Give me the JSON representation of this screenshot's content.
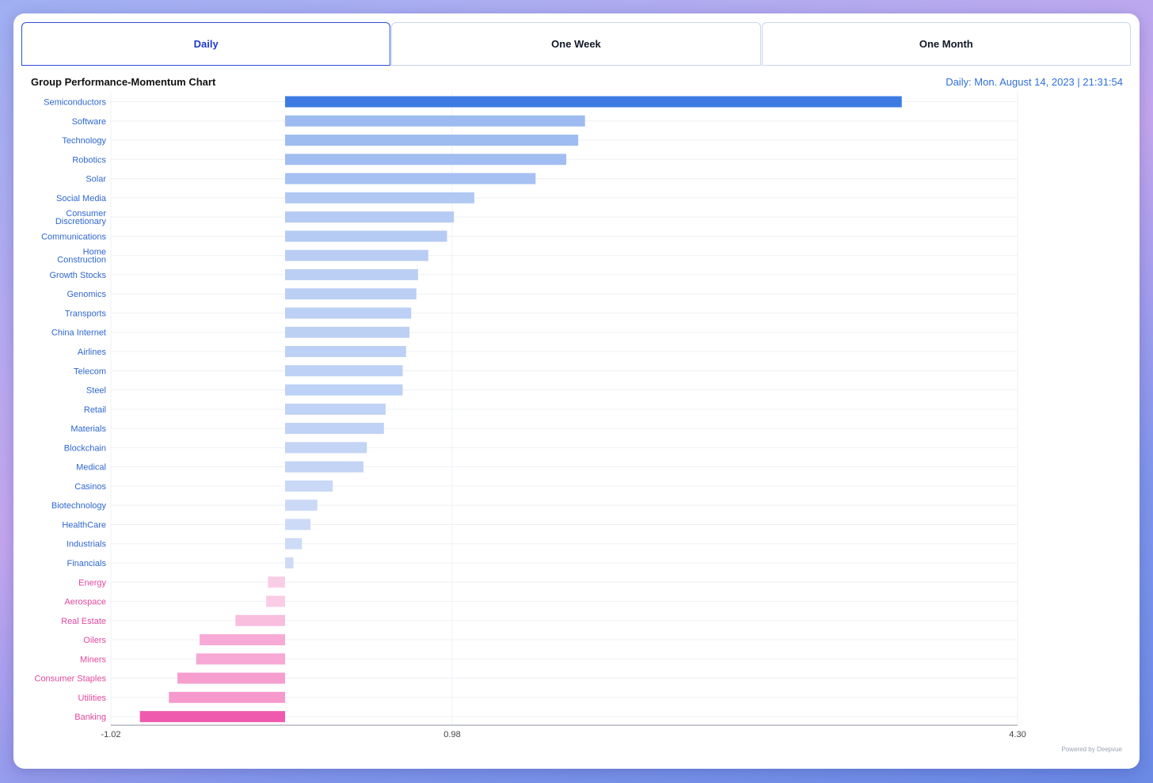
{
  "tabs": [
    {
      "label": "Daily",
      "active": true
    },
    {
      "label": "One Week",
      "active": false
    },
    {
      "label": "One Month",
      "active": false
    }
  ],
  "header": {
    "title": "Group Performance-Momentum Chart",
    "timestamp": "Daily: Mon. August 14, 2023 | 21:31:54"
  },
  "footer": {
    "powered_by": "Powered by Deepvue"
  },
  "colors": {
    "positive_strong": "#3d7be3",
    "positive_light": "#cfdcf7",
    "negative_strong": "#f05aae",
    "negative_light": "#fbd6ea",
    "positive_label": "#2f67d0",
    "negative_label": "#e2489e",
    "grid": "#eef0f4",
    "axis": "#8c93a3"
  },
  "chart_data": {
    "type": "bar",
    "orientation": "horizontal",
    "title": "Group Performance-Momentum Chart",
    "xlim": [
      -1.02,
      4.3
    ],
    "xticks": [
      -1.02,
      0.98,
      4.3
    ],
    "xtick_labels": [
      "-1.02",
      "0.98",
      "4.30"
    ],
    "grid": true,
    "categories": [
      "Semiconductors",
      "Software",
      "Technology",
      "Robotics",
      "Solar",
      "Social Media",
      "Consumer Discretionary",
      "Communications",
      "Home Construction",
      "Growth Stocks",
      "Genomics",
      "Transports",
      "China Internet",
      "Airlines",
      "Telecom",
      "Steel",
      "Retail",
      "Materials",
      "Blockchain",
      "Medical",
      "Casinos",
      "Biotechnology",
      "HealthCare",
      "Industrials",
      "Financials",
      "Energy",
      "Aerospace",
      "Real Estate",
      "Oilers",
      "Miners",
      "Consumer Staples",
      "Utilities",
      "Banking"
    ],
    "values": [
      3.62,
      1.76,
      1.72,
      1.65,
      1.47,
      1.11,
      0.99,
      0.95,
      0.84,
      0.78,
      0.77,
      0.74,
      0.73,
      0.71,
      0.69,
      0.69,
      0.59,
      0.58,
      0.48,
      0.46,
      0.28,
      0.19,
      0.15,
      0.1,
      0.05,
      -0.1,
      -0.11,
      -0.29,
      -0.5,
      -0.52,
      -0.63,
      -0.68,
      -0.85
    ]
  }
}
